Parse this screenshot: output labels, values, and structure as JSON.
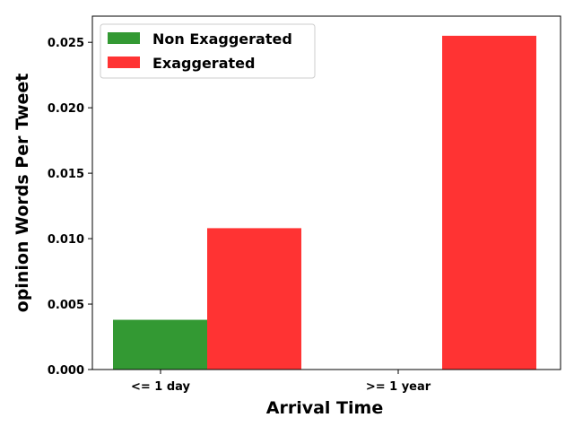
{
  "chart_data": {
    "type": "bar",
    "title": "",
    "xlabel": "Arrival Time",
    "ylabel": "opinion Words Per Tweet",
    "categories": [
      "<= 1 day",
      ">= 1 year"
    ],
    "series": [
      {
        "name": "Non Exaggerated",
        "color": "#339933",
        "values": [
          0.0038,
          0
        ]
      },
      {
        "name": "Exaggerated",
        "color": "#ff3333",
        "values": [
          0.0108,
          0.0255
        ]
      }
    ],
    "ylim": [
      0,
      0.027
    ],
    "yticks": [
      "0.000",
      "0.005",
      "0.010",
      "0.015",
      "0.020",
      "0.025"
    ],
    "grid": false,
    "legend_position": "upper-left"
  }
}
